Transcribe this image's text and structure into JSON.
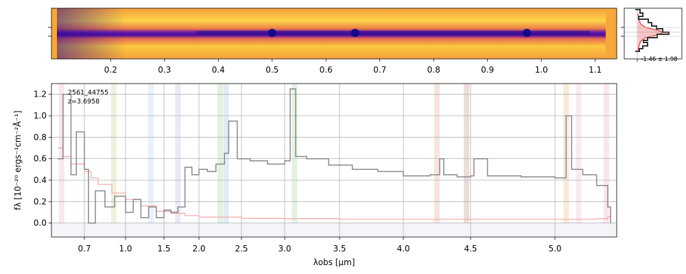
{
  "chart_data": [
    {
      "type": "heatmap",
      "panel": "2D spectrum",
      "x_tick_labels": [
        "0.2",
        "0.3",
        "0.4",
        "0.5",
        "0.6",
        "0.7",
        "0.8",
        "0.9",
        "1.0",
        "1.1"
      ],
      "x_tick_values": [
        0.2,
        0.3,
        0.4,
        0.5,
        0.6,
        0.7,
        0.8,
        0.9,
        1.0,
        1.1
      ],
      "xlim": [
        0.09,
        1.14
      ],
      "colormap": "plasma",
      "trace_peaks_x": [
        0.5,
        0.654,
        0.973
      ]
    },
    {
      "type": "histogram",
      "panel": "pixel distribution",
      "annotation": "-1.46 ± 1.98",
      "gaussian_line_color": "#e03c3c",
      "fill_color": "#f7c4c7"
    },
    {
      "type": "line",
      "panel": "1D spectrum",
      "object_id": "2561_44755",
      "redshift_label": "z=3.6958",
      "xlabel": "λobs [μm]",
      "ylabel": "fλ [10⁻²⁰ ergs⁻¹cm⁻²Å⁻¹]",
      "x_scale": "nonlinear (spectral pixel)",
      "xlim": [
        0.6,
        5.4
      ],
      "ylim": [
        -0.13,
        1.3
      ],
      "x_ticks": [
        0.7,
        1.0,
        1.5,
        2.0,
        2.5,
        3.0,
        3.5,
        4.0,
        4.5,
        5.0
      ],
      "x_tick_labels": [
        "0.7",
        "1.0",
        "1.5",
        "2.0",
        "2.5",
        "3.0",
        "3.5",
        "4.0",
        "4.5",
        "5.0"
      ],
      "y_ticks": [
        0.0,
        0.2,
        0.4,
        0.6,
        0.8,
        1.0,
        1.2
      ],
      "y_tick_labels": [
        "0.0",
        "0.2",
        "0.4",
        "0.6",
        "0.8",
        "1.0",
        "1.2"
      ],
      "grid": true,
      "series": [
        {
          "role": "flux",
          "color": "#888888",
          "x": [
            0.6,
            0.62,
            0.65,
            0.67,
            0.7,
            0.73,
            0.78,
            0.85,
            0.92,
            1.0,
            1.1,
            1.2,
            1.3,
            1.4,
            1.5,
            1.6,
            1.7,
            1.8,
            1.9,
            2.0,
            2.1,
            2.2,
            2.3,
            2.35,
            2.45,
            2.6,
            2.8,
            3.0,
            3.05,
            3.1,
            3.2,
            3.4,
            3.6,
            3.8,
            4.0,
            4.2,
            4.27,
            4.3,
            4.4,
            4.5,
            4.52,
            4.6,
            4.8,
            5.0,
            5.08,
            5.12,
            5.2,
            5.3,
            5.38,
            5.4
          ],
          "y": [
            0.6,
            1.2,
            0.45,
            0.85,
            0.5,
            0.0,
            0.3,
            0.15,
            0.25,
            0.1,
            0.22,
            0.05,
            0.15,
            0.05,
            0.12,
            0.1,
            0.15,
            0.52,
            0.45,
            0.5,
            0.48,
            0.55,
            0.65,
            0.95,
            0.6,
            0.58,
            0.55,
            0.58,
            1.25,
            0.62,
            0.6,
            0.54,
            0.5,
            0.48,
            0.44,
            0.45,
            0.6,
            0.45,
            0.43,
            0.44,
            0.6,
            0.44,
            0.43,
            0.42,
            1.0,
            0.5,
            0.45,
            0.35,
            0.15,
            0.0
          ]
        },
        {
          "role": "uncertainty",
          "color": "#f4a6a6",
          "x": [
            0.6,
            0.62,
            0.65,
            0.7,
            0.75,
            0.8,
            0.9,
            1.0,
            1.2,
            1.4,
            1.6,
            1.8,
            2.0,
            2.5,
            3.0,
            3.5,
            4.0,
            4.5,
            5.0,
            5.3,
            5.38,
            5.4
          ],
          "y": [
            0.7,
            0.62,
            0.55,
            0.48,
            0.42,
            0.36,
            0.28,
            0.22,
            0.16,
            0.11,
            0.09,
            0.07,
            0.055,
            0.045,
            0.04,
            0.035,
            0.035,
            0.035,
            0.035,
            0.04,
            0.06,
            0.1
          ]
        }
      ],
      "line_markers": [
        {
          "x": 0.615,
          "color": "#fbe3e6"
        },
        {
          "x": 0.915,
          "color": "#eef0d8"
        },
        {
          "x": 1.33,
          "color": "#e8eef9"
        },
        {
          "x": 1.7,
          "color": "#ece6f3"
        },
        {
          "x": 2.25,
          "color": "#dff0df"
        },
        {
          "x": 2.32,
          "color": "#dde9f5"
        },
        {
          "x": 3.09,
          "color": "#e2f0e2"
        },
        {
          "x": 4.25,
          "color": "#f4e1dc"
        },
        {
          "x": 4.47,
          "color": "#ead8d8"
        },
        {
          "x": 5.08,
          "color": "#fbe8d4"
        },
        {
          "x": 5.17,
          "color": "#fbe8f2"
        },
        {
          "x": 5.37,
          "color": "#fbe3ea"
        }
      ]
    }
  ]
}
